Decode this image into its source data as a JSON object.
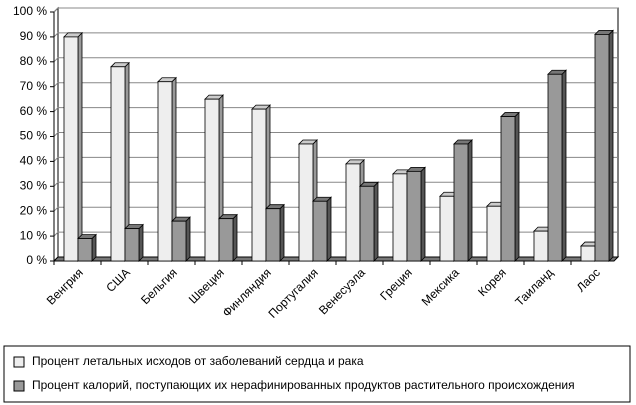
{
  "chart_data": {
    "type": "bar3d",
    "categories": [
      "Венгрия",
      "США",
      "Бельгия",
      "Швеция",
      "Финляндия",
      "Португалия",
      "Венесуэла",
      "Греция",
      "Мексика",
      "Корея",
      "Таиланд",
      "Лаос"
    ],
    "series": [
      {
        "name": "Процент летальных исходов от заболеваний сердца и рака",
        "color": "#eeeeee",
        "values": [
          90,
          78,
          72,
          65,
          61,
          47,
          39,
          35,
          26,
          22,
          12,
          6
        ]
      },
      {
        "name": "Процент калорий, поступающих их нерафинированных продуктов растительного происхождения",
        "color": "#999999",
        "values": [
          9,
          13,
          16,
          17,
          21,
          24,
          30,
          36,
          47,
          58,
          75,
          91
        ]
      }
    ],
    "ylim": [
      0,
      100
    ],
    "yticks": [
      {
        "value": 0,
        "label": "0 %"
      },
      {
        "value": 10,
        "label": "10 %"
      },
      {
        "value": 20,
        "label": "20 %"
      },
      {
        "value": 30,
        "label": "30 %"
      },
      {
        "value": 40,
        "label": "40 %"
      },
      {
        "value": 50,
        "label": "50 %"
      },
      {
        "value": 60,
        "label": "60 %"
      },
      {
        "value": 70,
        "label": "70 %"
      },
      {
        "value": 80,
        "label": "80 %"
      },
      {
        "value": 90,
        "label": "90 %"
      },
      {
        "value": 100,
        "label": "100 %"
      }
    ],
    "grid": true,
    "legend": "bottom"
  }
}
